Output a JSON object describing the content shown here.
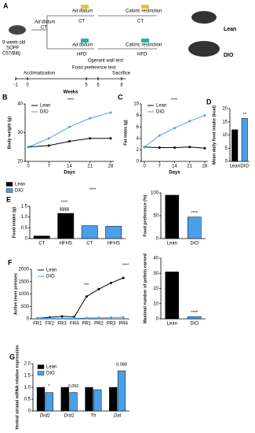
{
  "diagram": {
    "label": "A",
    "start": [
      "9-week-old",
      "SOPF",
      "C57/Bl6j"
    ],
    "stage1": [
      {
        "mode": "Ad libitum",
        "diet": "CT"
      }
    ],
    "arms": [
      {
        "mode": "Ad libitum",
        "diet": "CT"
      },
      {
        "mode": "Caloric restriction",
        "diet": "CT"
      },
      {
        "mode": "Ad libitum",
        "diet": "HFD"
      },
      {
        "mode": "Caloric restriction",
        "diet": "HFD"
      }
    ],
    "outcomes": [
      "Lean",
      "DIO"
    ],
    "timeline": {
      "events": [
        "Acclimatization",
        "Food preference test",
        "Operant wall test",
        "Sacrifice"
      ],
      "ticks": [
        -1,
        0,
        5,
        6,
        8
      ],
      "label": "Weeks"
    }
  },
  "chart_data": [
    {
      "type": "line",
      "label": "B",
      "y_label": "Body weight (g)",
      "x_label": "Days",
      "x": [
        0,
        7,
        14,
        21,
        28
      ],
      "xlim": [
        0,
        28
      ],
      "xticks": [
        0,
        7,
        14,
        21,
        28
      ],
      "ylim": [
        20,
        40
      ],
      "yticks": [
        20,
        30,
        40
      ],
      "legend": true,
      "series": [
        {
          "name": "Lean",
          "color": "#000000",
          "values": [
            25,
            25.5,
            27,
            28,
            28
          ]
        },
        {
          "name": "DIO",
          "color": "#4a9fe8",
          "values": [
            25,
            28,
            32,
            35,
            37
          ]
        }
      ],
      "annotations": [
        "****"
      ]
    },
    {
      "type": "line",
      "label": "C",
      "y_label": "Fat mass (g)",
      "x_label": "Days",
      "x": [
        0,
        7,
        14,
        21,
        28
      ],
      "xlim": [
        0,
        28
      ],
      "xticks": [
        0,
        7,
        14,
        21,
        28
      ],
      "ylim": [
        0,
        10
      ],
      "yticks": [
        0,
        2,
        4,
        6,
        8,
        10
      ],
      "legend": true,
      "series": [
        {
          "name": "Lean",
          "color": "#000000",
          "values": [
            2.5,
            2.4,
            2.4,
            2.5,
            2.3
          ]
        },
        {
          "name": "DIO",
          "color": "#4a9fe8",
          "values": [
            2.5,
            4.5,
            5.8,
            7,
            8
          ]
        }
      ],
      "annotations": [
        "****"
      ]
    },
    {
      "type": "bar",
      "label": "D",
      "y_label": "Mean daily food intake (kcal)",
      "categories": [
        "Lean",
        "DIO"
      ],
      "values": [
        12,
        16.3
      ],
      "colors": [
        "#000000",
        "#4a9fe8"
      ],
      "ylim": [
        0,
        20
      ],
      "yticks": [
        0,
        5,
        10,
        15,
        20
      ],
      "annotations": [
        "**"
      ]
    },
    {
      "type": "bar",
      "label": "E",
      "y_label": "Food intake (g)",
      "categories": [
        "CT",
        "HFHS",
        "CT",
        "HFHS"
      ],
      "ylim": [
        0,
        1.5
      ],
      "yticks": [
        0,
        0.5,
        {
          "value": 1,
          "label": "1.0"
        },
        1.5
      ],
      "legend": true,
      "series": [
        {
          "name": "Lean",
          "color": "#000000",
          "values": [
            0.12,
            1.17,
            null,
            null
          ]
        },
        {
          "name": "DIO",
          "color": "#4a9fe8",
          "values": [
            null,
            null,
            0.6,
            0.57
          ]
        }
      ],
      "annotations": [
        "****",
        "$$$$",
        "****"
      ]
    },
    {
      "type": "bar",
      "y_label": "Food preference (%)",
      "categories": [
        "Lean",
        "DIO"
      ],
      "values": [
        95,
        47
      ],
      "colors": [
        "#000000",
        "#4a9fe8"
      ],
      "ylim": [
        0,
        100
      ],
      "yticks": [
        0,
        50,
        100
      ],
      "annotations": [
        "****"
      ]
    },
    {
      "type": "line",
      "label": "F",
      "y_label": "Active lever presses",
      "categories": [
        "FR1",
        "FR2",
        "FR3",
        "FR4",
        "PR1",
        "PR2",
        "PR3",
        "PR4"
      ],
      "ylim": [
        0,
        2000
      ],
      "yticks": [
        0,
        500,
        1000,
        1500,
        2000
      ],
      "legend": true,
      "series": [
        {
          "name": "Lean",
          "color": "#000000",
          "values": [
            20,
            60,
            100,
            80,
            900,
            1200,
            1450,
            1650
          ]
        },
        {
          "name": "DIO",
          "color": "#4a9fe8",
          "values": [
            10,
            15,
            20,
            20,
            30,
            40,
            50,
            60
          ]
        }
      ],
      "annotations": [
        "****",
        "***"
      ]
    },
    {
      "type": "bar",
      "y_label": "Maximal number of pellets earned",
      "categories": [
        "Lean",
        "DIO"
      ],
      "values": [
        31,
        1.5
      ],
      "colors": [
        "#000000",
        "#4a9fe8"
      ],
      "ylim": [
        0,
        40
      ],
      "yticks": [
        0,
        10,
        20,
        30,
        40
      ],
      "annotations": [
        "****"
      ]
    },
    {
      "type": "bar",
      "label": "G",
      "y_label": "Ventral striatal mRNA relative expression",
      "categories": [
        "Drd2",
        "Drd1",
        "Th",
        "Dat"
      ],
      "ylim": [
        0,
        2
      ],
      "yticks": [
        0,
        0.5,
        {
          "value": 1,
          "label": "1.0"
        },
        1.5,
        {
          "value": 2,
          "label": "2.0"
        }
      ],
      "legend": true,
      "series": [
        {
          "name": "Lean",
          "color": "#000000",
          "values": [
            1,
            1,
            1,
            1
          ]
        },
        {
          "name": "DIO",
          "color": "#4a9fe8",
          "values": [
            0.78,
            0.78,
            0.9,
            1.7
          ]
        }
      ],
      "annotations": [
        "*",
        "0.050",
        "0.088"
      ]
    }
  ]
}
